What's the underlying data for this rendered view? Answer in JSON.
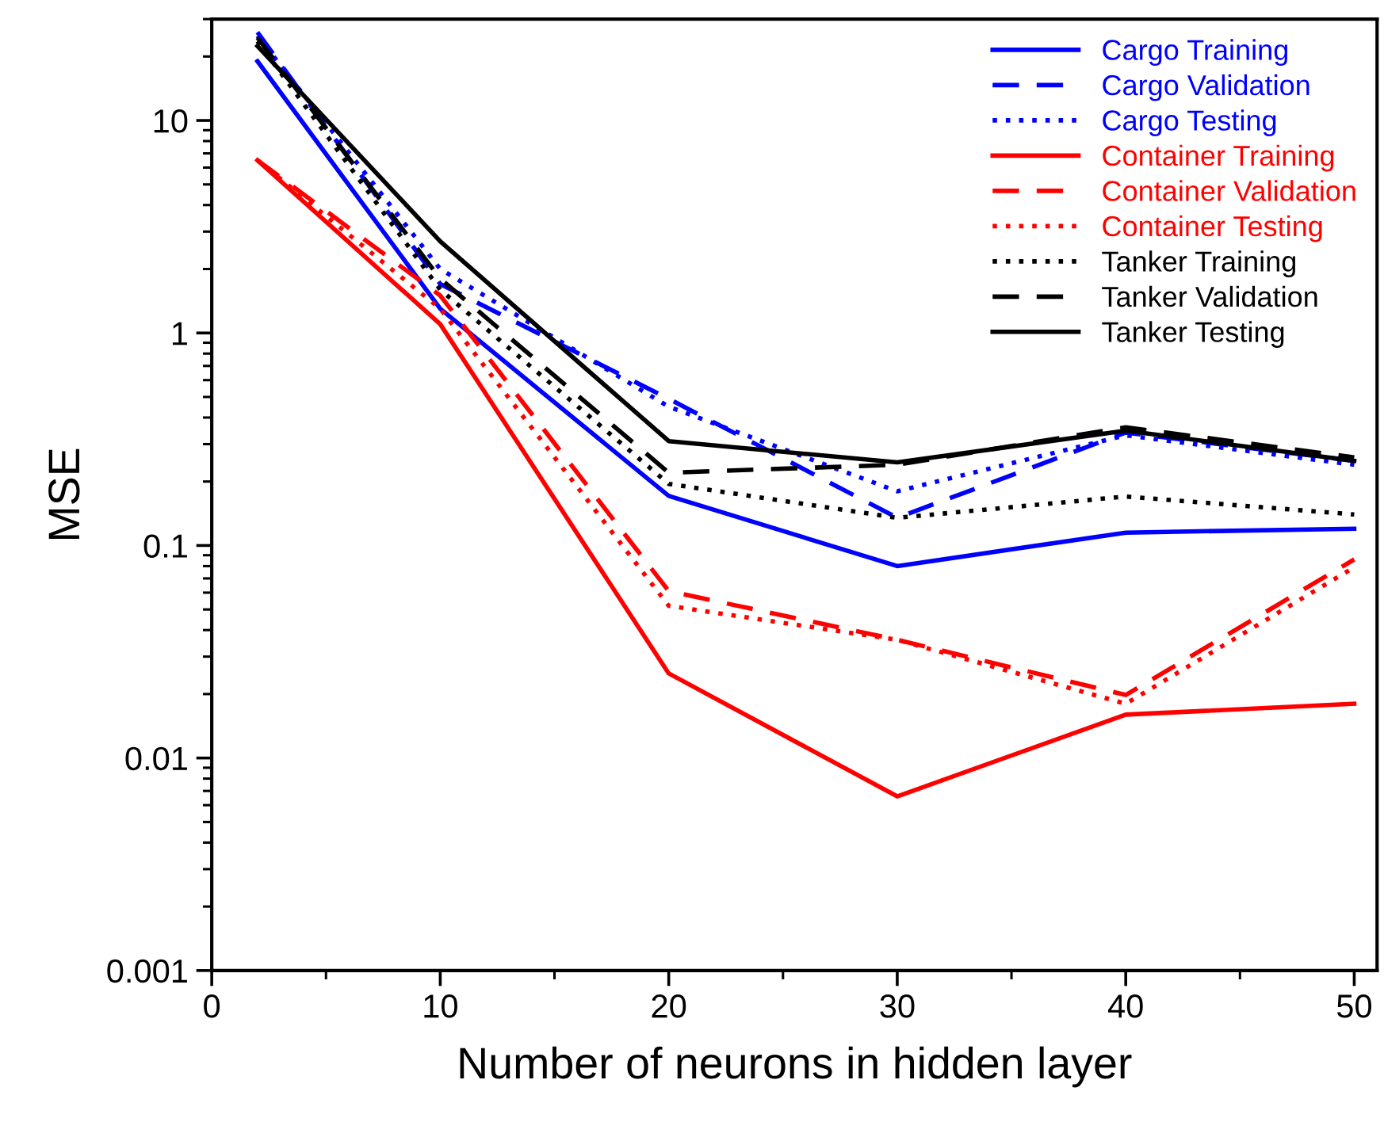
{
  "chart_data": {
    "type": "line",
    "xlabel": "Number of neurons in hidden layer",
    "ylabel": "MSE",
    "log": "y",
    "x": [
      2,
      10,
      20,
      30,
      40,
      50
    ],
    "xlim": [
      0,
      51
    ],
    "xticks": [
      0,
      10,
      20,
      30,
      40,
      50
    ],
    "ylim": [
      0.001,
      30
    ],
    "yticks": [
      0.001,
      0.01,
      0.1,
      1,
      10
    ],
    "grid": false,
    "legend": "top right",
    "marker": "none",
    "series": [
      {
        "name": "Cargo Training",
        "color": "#0000ff",
        "line_style": "solid",
        "values": [
          19,
          1.3,
          0.171,
          0.08,
          0.115,
          0.12
        ]
      },
      {
        "name": "Cargo Validation",
        "color": "#0000ff",
        "line_style": "dashed",
        "values": [
          26,
          1.7,
          0.49,
          0.135,
          0.34,
          0.25
        ]
      },
      {
        "name": "Cargo Testing",
        "color": "#0000ff",
        "line_style": "dotted",
        "values": [
          25,
          2.0,
          0.45,
          0.18,
          0.33,
          0.24
        ]
      },
      {
        "name": "Container Training",
        "color": "#ff0000",
        "line_style": "solid",
        "values": [
          6.5,
          1.1,
          0.025,
          0.0066,
          0.016,
          0.018
        ]
      },
      {
        "name": "Container Validation",
        "color": "#ff0000",
        "line_style": "dashed",
        "values": [
          6.5,
          1.5,
          0.061,
          0.036,
          0.0198,
          0.086
        ]
      },
      {
        "name": "Container Testing",
        "color": "#ff0000",
        "line_style": "dotted",
        "values": [
          6.5,
          1.3,
          0.052,
          0.036,
          0.018,
          0.079
        ]
      },
      {
        "name": "Tanker Training",
        "color": "#000000",
        "line_style": "dotted",
        "values": [
          23.6,
          1.6,
          0.195,
          0.135,
          0.17,
          0.14
        ]
      },
      {
        "name": "Tanker Validation",
        "color": "#000000",
        "line_style": "dashed",
        "values": [
          24.5,
          1.8,
          0.22,
          0.24,
          0.36,
          0.26
        ]
      },
      {
        "name": "Tanker Testing",
        "color": "#000000",
        "line_style": "solid",
        "values": [
          22.4,
          2.7,
          0.31,
          0.246,
          0.347,
          0.25
        ]
      }
    ]
  }
}
